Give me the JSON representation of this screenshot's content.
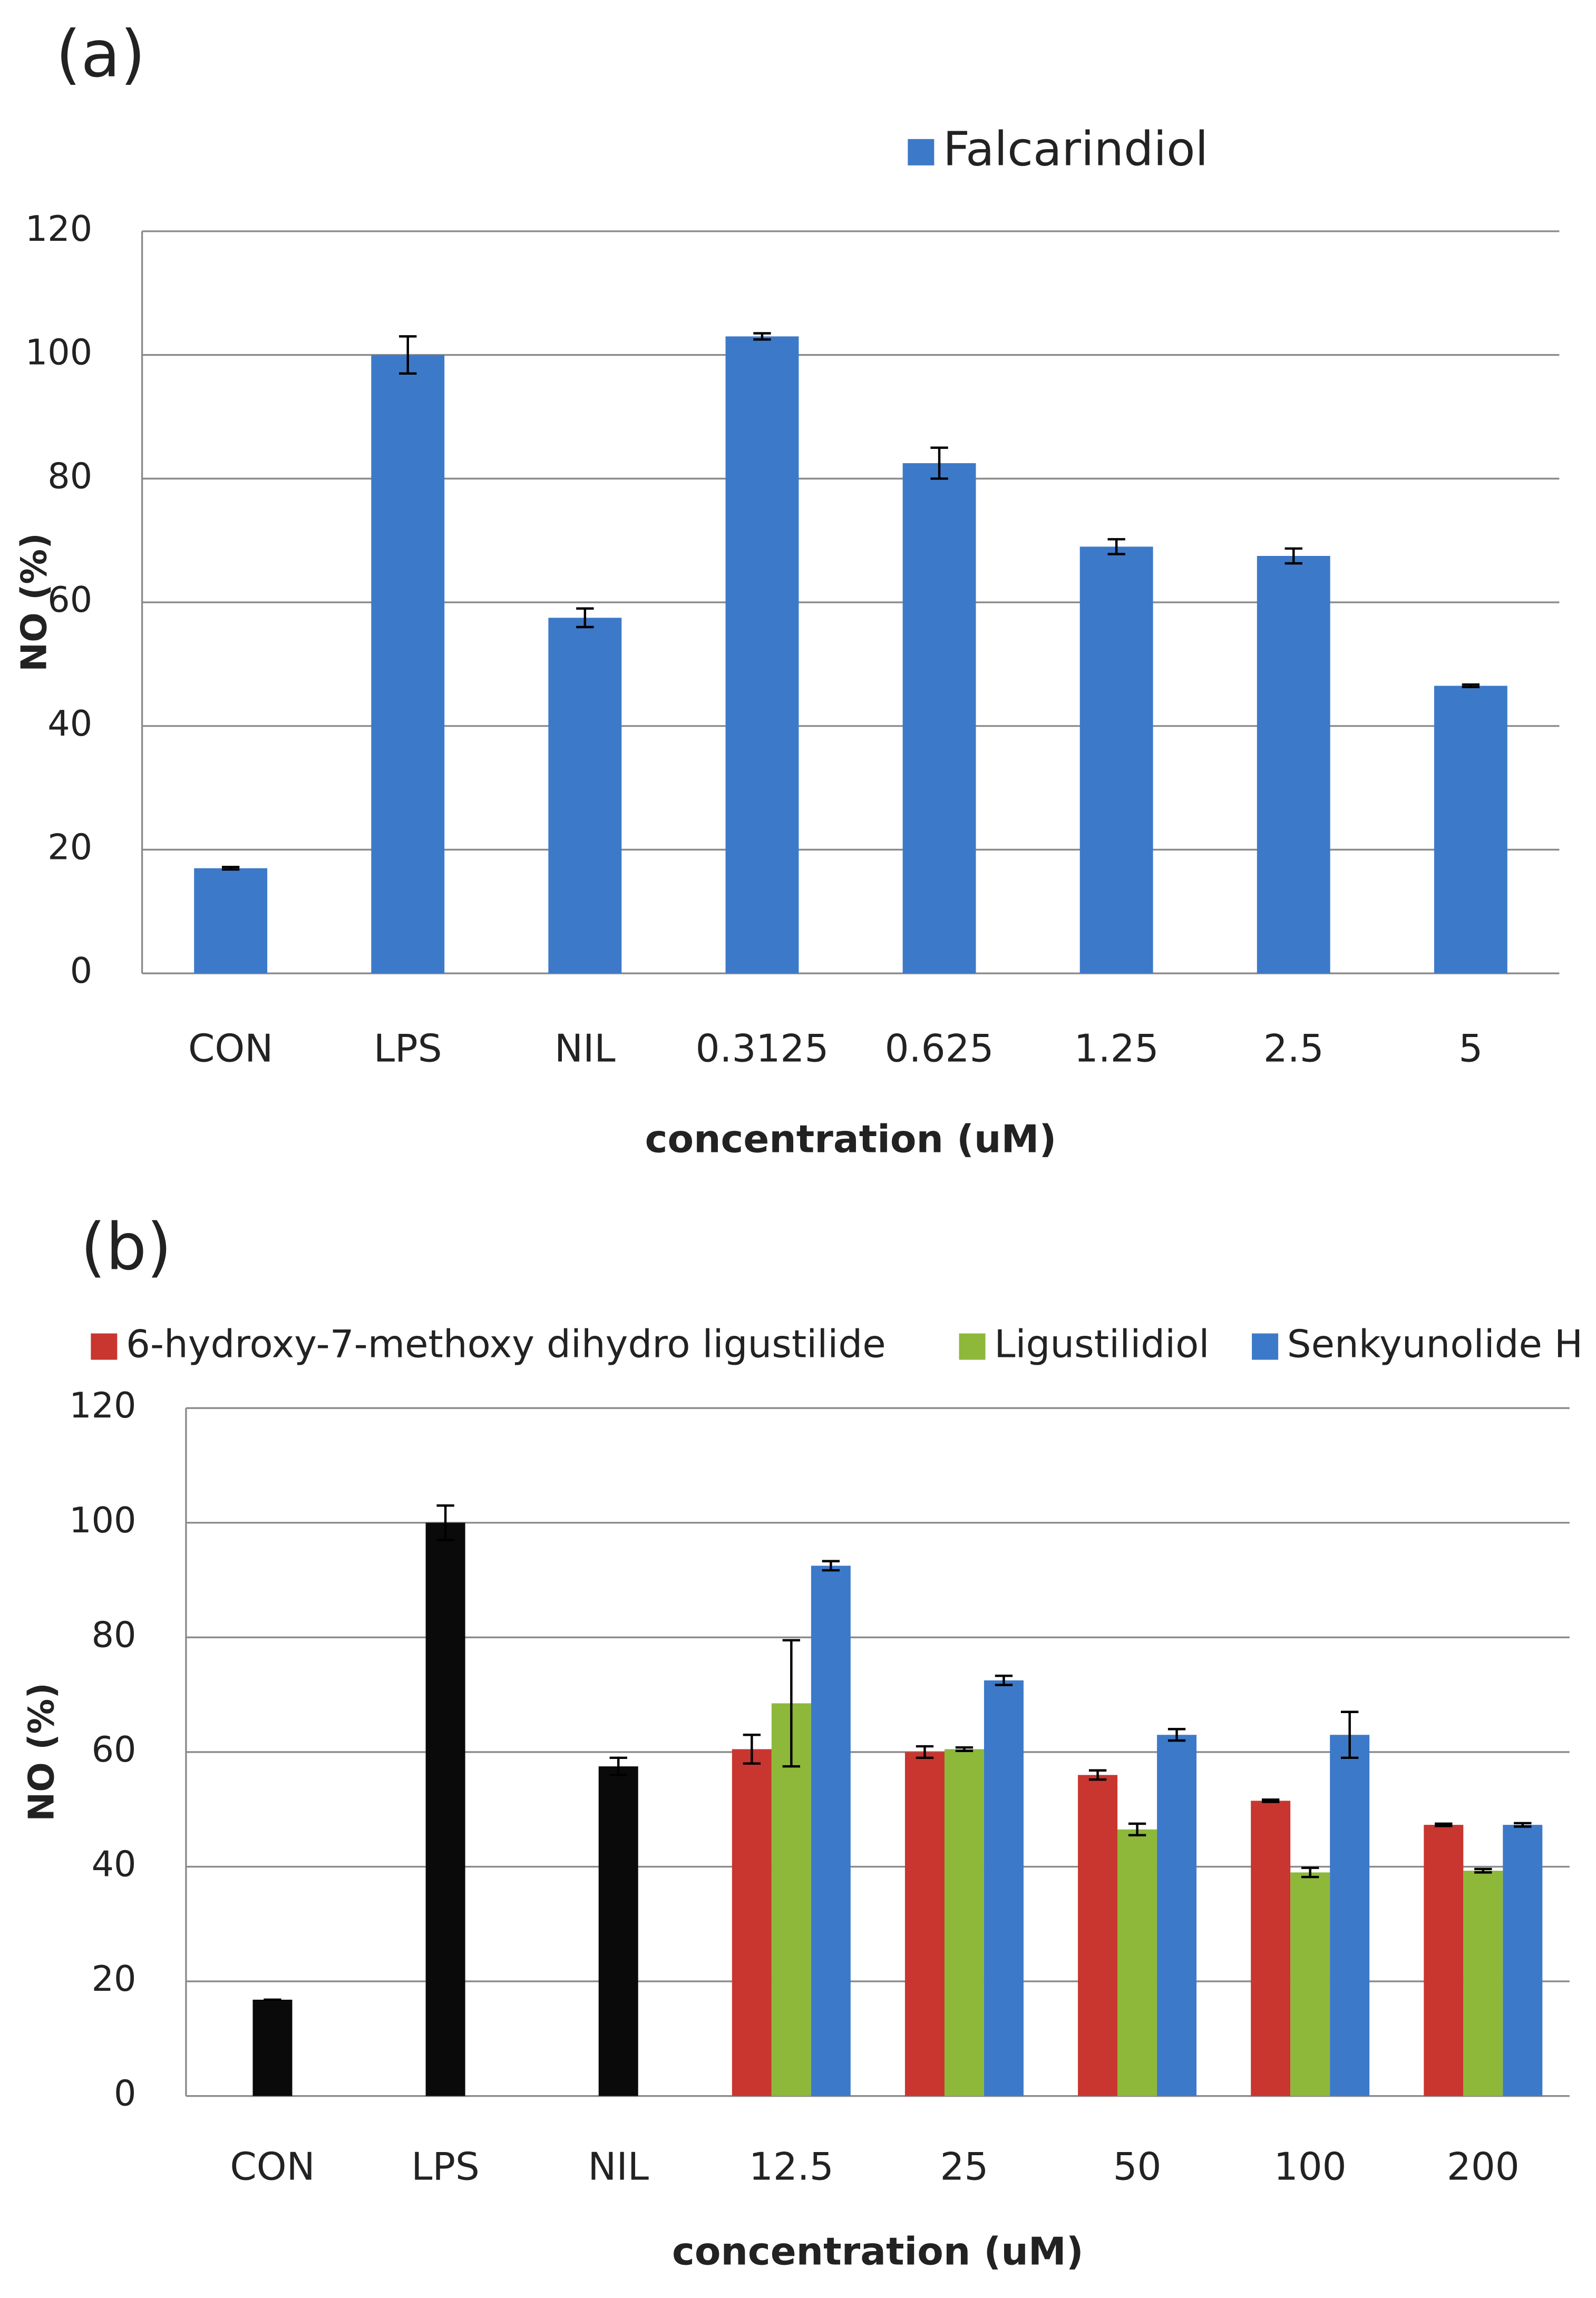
{
  "chart_data": [
    {
      "type": "bar",
      "panel": "(a)",
      "ylabel": "NO (%)",
      "xlabel": "concentration (uM)",
      "categories": [
        "CON",
        "LPS",
        "NIL",
        "0.3125",
        "0.625",
        "1.25",
        "2.5",
        "5"
      ],
      "series": [
        {
          "name": "Falcarindiol",
          "color": "#3d79c9",
          "values": [
            17,
            100,
            57.5,
            103,
            82.5,
            69,
            67.5,
            46.5
          ],
          "errors": [
            0.2,
            3,
            1.5,
            0.5,
            2.5,
            1.2,
            1.2,
            0.2
          ]
        }
      ],
      "ylim": [
        0,
        120
      ],
      "yticks": [
        0,
        20,
        40,
        60,
        80,
        100,
        120
      ],
      "grid": true,
      "legend": "top"
    },
    {
      "type": "bar",
      "panel": "(b)",
      "ylabel": "NO (%)",
      "xlabel": "concentration (uM)",
      "categories": [
        "CON",
        "LPS",
        "NIL",
        "12.5",
        "25",
        "50",
        "100",
        "200"
      ],
      "color": "#0a0a0a",
      "values": [
        16.8,
        100,
        57.5,
        null,
        null,
        null,
        null,
        null
      ],
      "errors": [
        0,
        3,
        1.5,
        null,
        null,
        null,
        null,
        null
      ],
      "series": [
        {
          "name": "6-hydroxy-7-methoxy  dihydro  ligustilide",
          "color": "#c8362f",
          "values": [
            null,
            null,
            null,
            60.5,
            60,
            56,
            51.5,
            47.3
          ],
          "errors": [
            null,
            null,
            null,
            2.5,
            1,
            0.8,
            0.2,
            0.2
          ]
        },
        {
          "name": "Ligustilidiol",
          "color": "#8db83a",
          "values": [
            null,
            null,
            null,
            68.5,
            60.5,
            46.5,
            39,
            39.3
          ],
          "errors": [
            null,
            null,
            null,
            11,
            0.3,
            1,
            0.8,
            0.3
          ]
        },
        {
          "name": "Senkyunolide H",
          "color": "#3d79c9",
          "values": [
            null,
            null,
            null,
            92.5,
            72.5,
            63,
            63,
            47.3
          ],
          "errors": [
            null,
            null,
            null,
            0.8,
            0.8,
            1,
            4,
            0.3
          ]
        }
      ],
      "ylim": [
        0,
        120
      ],
      "yticks": [
        0,
        20,
        40,
        60,
        80,
        100,
        120
      ],
      "grid": true,
      "legend": "top"
    }
  ]
}
